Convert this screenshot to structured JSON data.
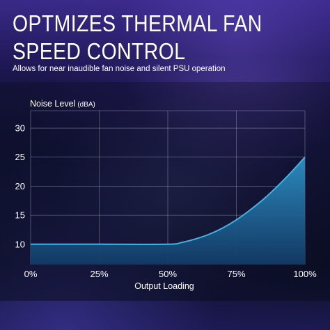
{
  "header": {
    "title_line1": "OPTMIZES THERMAL FAN",
    "title_line2": "SPEED CONTROL",
    "subtitle": "Allows for near inaudible fan noise and silent PSU operation"
  },
  "colors": {
    "curve": "#3fb4e6",
    "fill_top": "#2d8fc4",
    "fill_bottom": "#123a66",
    "grid": "#b9bfd0"
  },
  "chart_data": {
    "type": "area",
    "title": "",
    "ylabel": "Noise Level",
    "ylabel_unit": "(dBA)",
    "xlabel": "Output Loading",
    "x_ticks": [
      "0%",
      "25%",
      "50%",
      "75%",
      "100%"
    ],
    "y_ticks": [
      "10",
      "15",
      "20",
      "25",
      "30"
    ],
    "xlim": [
      0,
      100
    ],
    "ylim": [
      6.5,
      33
    ],
    "grid": true,
    "series": [
      {
        "x": [
          0,
          25,
          50,
          55,
          60,
          65,
          70,
          75,
          80,
          85,
          90,
          95,
          100
        ],
        "y": [
          10,
          10,
          10,
          10.3,
          10.9,
          11.7,
          12.8,
          14.2,
          15.9,
          17.8,
          20.0,
          22.4,
          25.0
        ]
      }
    ]
  }
}
